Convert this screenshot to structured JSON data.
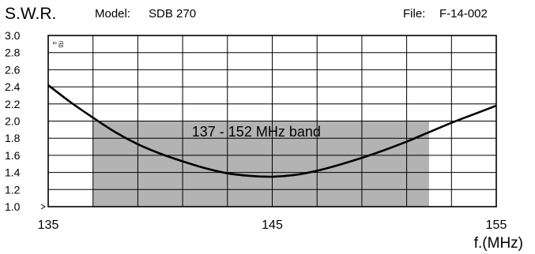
{
  "header": {
    "title": "S.W.R.",
    "model_label": "Model:",
    "model_value": "SDB 270",
    "file_label": "File:",
    "file_value": "F-14-002"
  },
  "chart_data": {
    "type": "line",
    "title": "S.W.R.",
    "xlabel": "f.(MHz)",
    "ylabel": "",
    "xlim": [
      135,
      155
    ],
    "ylim": [
      1.0,
      3.0
    ],
    "x_ticks": [
      135,
      145,
      155
    ],
    "x_tick_labels": [
      "135",
      "145",
      "155"
    ],
    "x_grid_step": 2,
    "y_ticks": [
      1.0,
      1.2,
      1.4,
      1.6,
      1.8,
      2.0,
      2.2,
      2.4,
      2.6,
      2.8,
      3.0
    ],
    "y_tick_labels": [
      "1.0",
      "1.2",
      "1.4",
      "1.6",
      "1.8",
      "2.0",
      "2.2",
      "2.4",
      "2.6",
      "2.8",
      "3.0"
    ],
    "grid": true,
    "band": {
      "x_start": 137,
      "x_end": 152,
      "y_max": 2.0,
      "label": "137 - 152 MHz band",
      "color": "#b3b3b3"
    },
    "corner_mark": "ᄃ곱",
    "series": [
      {
        "color": "#000000",
        "x": [
          135,
          136,
          137,
          138,
          139,
          140,
          141,
          142,
          143,
          144,
          145,
          146,
          147,
          148,
          149,
          150,
          151,
          152,
          153,
          154,
          155
        ],
        "y": [
          2.42,
          2.22,
          2.04,
          1.87,
          1.73,
          1.62,
          1.53,
          1.45,
          1.39,
          1.36,
          1.35,
          1.37,
          1.42,
          1.49,
          1.57,
          1.66,
          1.76,
          1.87,
          1.98,
          2.08,
          2.18
        ]
      }
    ]
  }
}
